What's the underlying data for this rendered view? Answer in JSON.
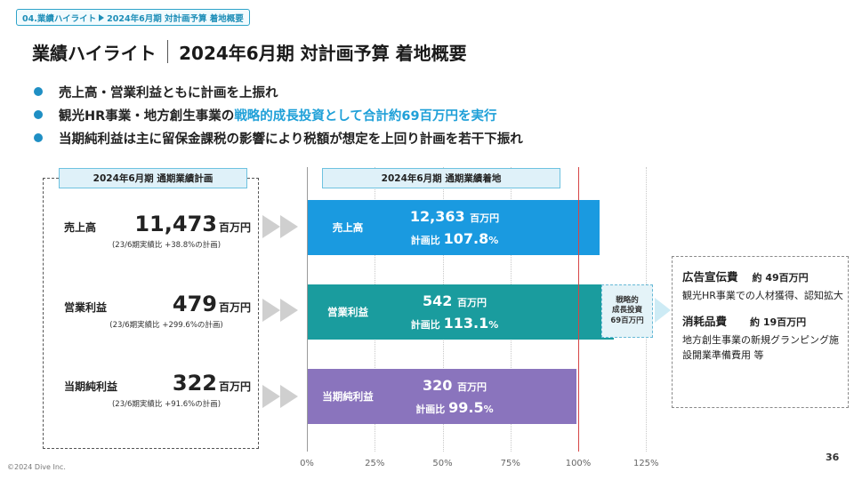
{
  "breadcrumb": {
    "section": "04.業績ハイライト",
    "page": "2024年6月期 対計画予算 着地概要"
  },
  "title": {
    "main": "業績ハイライト",
    "sub": "2024年6月期 対計画予算 着地概要"
  },
  "bullets": {
    "b1": "売上高・営業利益ともに計画を上振れ",
    "b2_pre": "観光HR事業・地方創生事業の",
    "b2_hl": "戦略的成長投資として合計約69百万円を実行",
    "b3": "当期純利益は主に留保金課税の影響により税額が想定を上回り計画を若干下振れ"
  },
  "plan": {
    "header": "2024年6月期 通期業績計画",
    "rows": [
      {
        "label": "売上高",
        "value": "11,473",
        "unit": "百万円",
        "note": "(23/6期実績比 +38.8%の計画)"
      },
      {
        "label": "営業利益",
        "value": "479",
        "unit": "百万円",
        "note": "(23/6期実績比 +299.6%の計画)"
      },
      {
        "label": "当期純利益",
        "value": "322",
        "unit": "百万円",
        "note": "(23/6期実績比 +91.6%の計画)"
      }
    ]
  },
  "actual": {
    "header": "2024年6月期 通期業績着地",
    "ratio_prefix": "計画比",
    "pct_sign": "%"
  },
  "chart_data": {
    "type": "bar",
    "orientation": "horizontal",
    "categories": [
      "売上高",
      "営業利益",
      "当期純利益"
    ],
    "values": [
      107.8,
      113.1,
      99.5
    ],
    "value_labels": [
      "12,363",
      "542",
      "320"
    ],
    "value_unit": "百万円",
    "ratio_labels": [
      "107.8",
      "113.1",
      "99.5"
    ],
    "x_ticks": [
      "0%",
      "25%",
      "50%",
      "75%",
      "100%",
      "125%"
    ],
    "xlim": [
      0,
      125
    ],
    "reference_line": 100,
    "colors": [
      "#1a9ae0",
      "#1a9c9e",
      "#8a74bd"
    ]
  },
  "investment": {
    "l1": "戦略的",
    "l2": "成長投資",
    "l3": "69百万円",
    "color": "#e4f3f8"
  },
  "details": [
    {
      "name": "広告宣伝費",
      "amount": "約 49百万円",
      "desc": "観光HR事業での人材獲得、認知拡大"
    },
    {
      "name": "消耗品費",
      "amount": "約 19百万円",
      "desc": "地方創生事業の新規グランピング施設開業準備費用 等"
    }
  ],
  "footer": {
    "copyright": "©2024 Dive Inc.",
    "page_number": "36"
  }
}
